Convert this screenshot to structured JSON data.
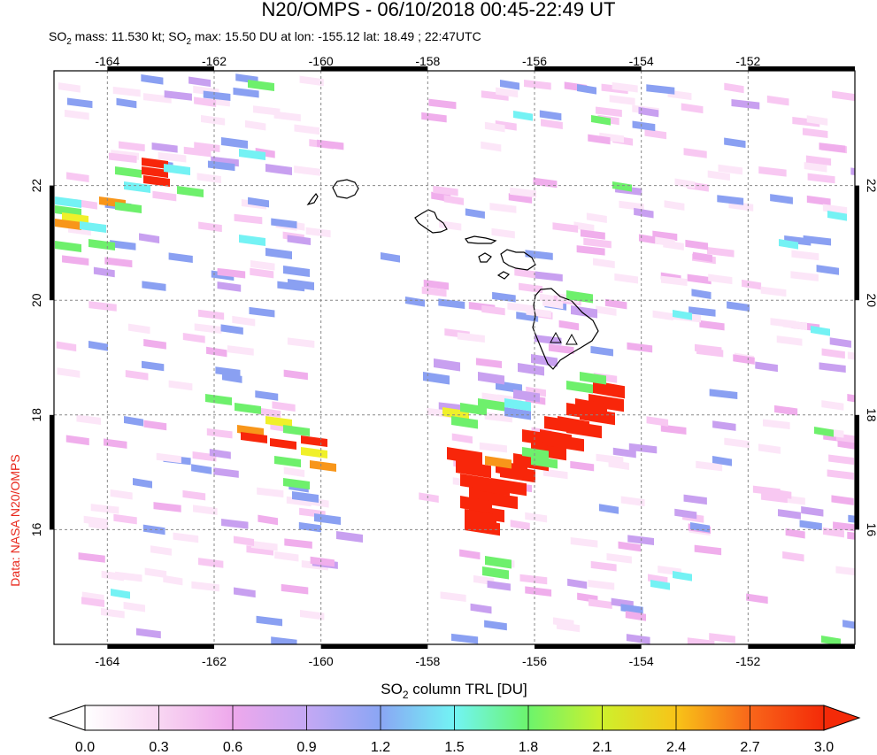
{
  "title": "N20/OMPS - 06/10/2018 00:45-22:49 UT",
  "subtitle_parts": {
    "a": "SO",
    "a_sub": "2",
    "b": " mass: 11.530 kt; SO",
    "b_sub": "2",
    "c": " max: 15.50 DU at lon: -155.12 lat: 18.49 ; 22:47UTC"
  },
  "credit": "Data: NASA N20/OMPS",
  "map": {
    "lon_range": [
      -165,
      -150
    ],
    "lat_range": [
      14,
      24
    ],
    "lon_ticks": [
      -164,
      -162,
      -160,
      -158,
      -156,
      -154,
      -152
    ],
    "lon_tick_labels": [
      "-164",
      "-162",
      "-160",
      "-158",
      "-156",
      "-154",
      "-152"
    ],
    "lat_ticks": [
      16,
      18,
      20,
      22
    ],
    "lat_tick_labels": [
      "16",
      "18",
      "20",
      "22"
    ],
    "volcano_icons": [
      "volcano-triangle-icon",
      "volcano-triangle-icon"
    ]
  },
  "colorbar": {
    "title_main": "SO",
    "title_sub": "2",
    "title_rest": " column TRL [DU]",
    "tick_labels": [
      "0.0",
      "0.3",
      "0.6",
      "0.9",
      "1.2",
      "1.5",
      "1.8",
      "2.1",
      "2.4",
      "2.7",
      "3.0"
    ],
    "range": [
      0,
      3
    ],
    "colors": [
      "#ffffff",
      "#f8d6f2",
      "#eea8ec",
      "#c4a8f4",
      "#8aa6f4",
      "#72f4f4",
      "#6cf46c",
      "#cef02c",
      "#f8c418",
      "#f8661a",
      "#f42a08"
    ]
  }
}
